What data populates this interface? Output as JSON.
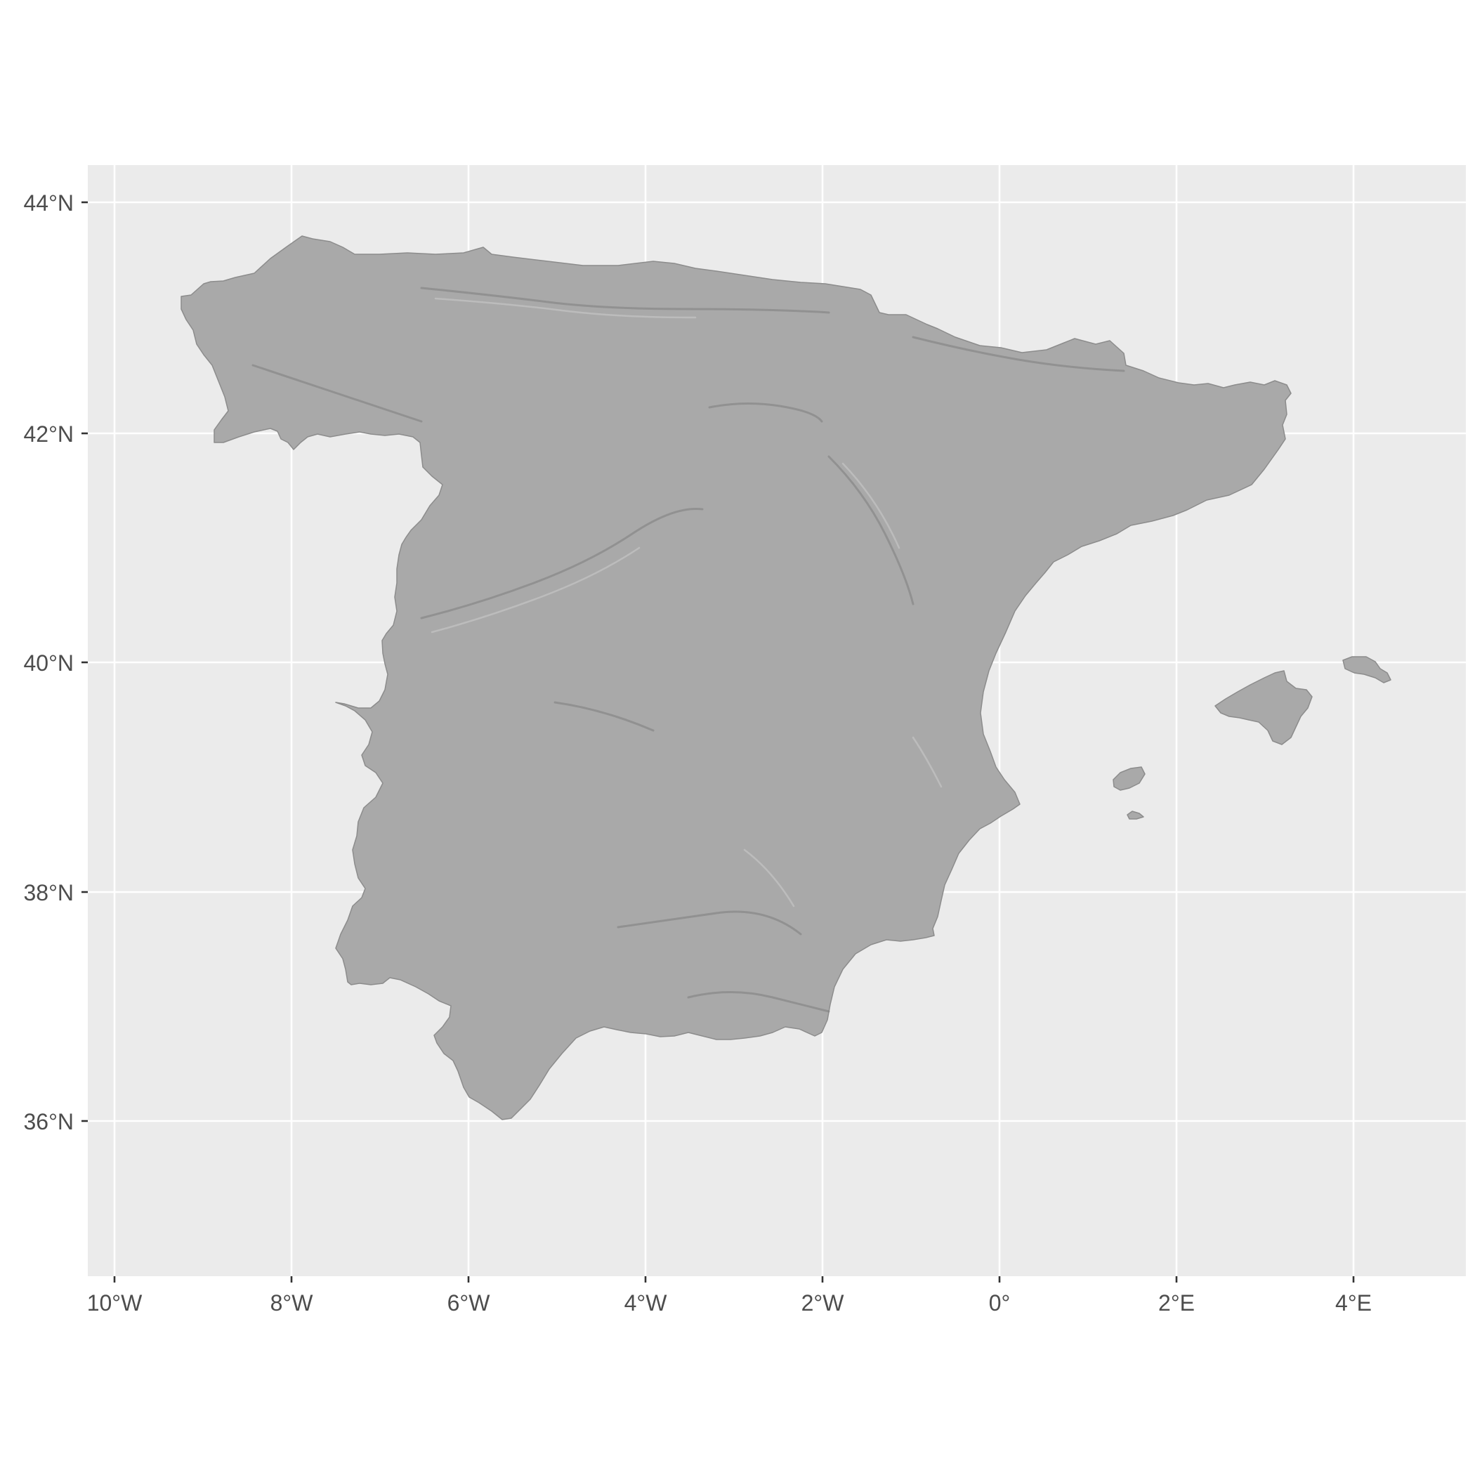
{
  "map": {
    "x_ticks": [
      "10°W",
      "8°W",
      "6°W",
      "4°W",
      "2°W",
      "0°",
      "2°E",
      "4°E"
    ],
    "y_ticks": [
      "44°N",
      "42°N",
      "40°N",
      "38°N",
      "36°N"
    ],
    "colors": {
      "panel_background": "#ebebeb",
      "grid": "#ffffff",
      "land_hillshade": "#a9a9a9",
      "tick_label": "#4d4d4d"
    },
    "features": [
      "iberian-peninsula-hillshade",
      "mallorca",
      "menorca",
      "ibiza",
      "formentera"
    ]
  }
}
